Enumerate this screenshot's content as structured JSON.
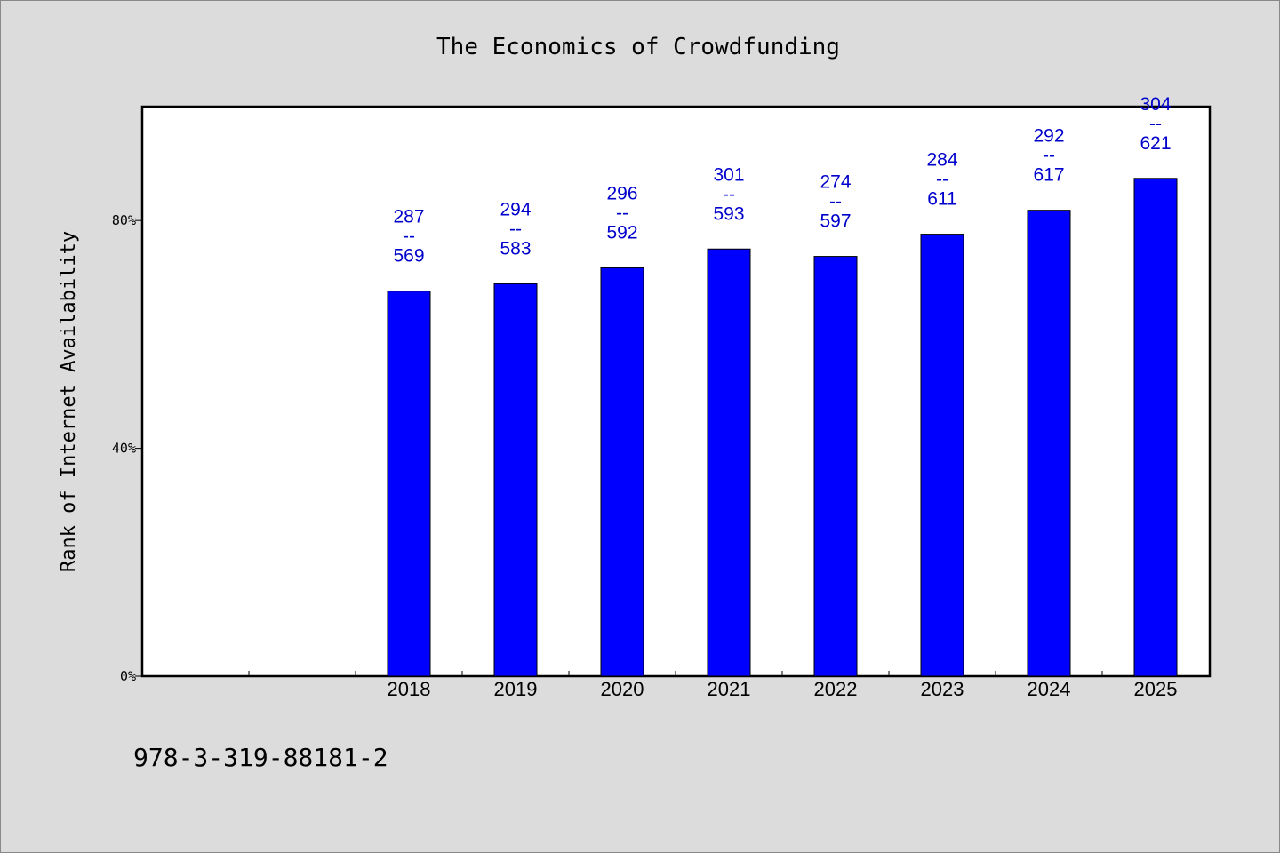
{
  "chart_data": {
    "type": "bar",
    "title": "The Economics of Crowdfunding",
    "ylabel": "Rank of Internet Availability",
    "xlabel": "",
    "categories": [
      "",
      "",
      "2018",
      "2019",
      "2020",
      "2021",
      "2022",
      "2023",
      "2024",
      "2025"
    ],
    "values": [
      null,
      null,
      67.6,
      68.9,
      71.7,
      75.0,
      73.7,
      77.6,
      81.8,
      87.4
    ],
    "data_labels": [
      null,
      null,
      [
        "287",
        "--",
        "569"
      ],
      [
        "294",
        "--",
        "583"
      ],
      [
        "296",
        "--",
        "592"
      ],
      [
        "301",
        "--",
        "593"
      ],
      [
        "274",
        "--",
        "597"
      ],
      [
        "284",
        "--",
        "611"
      ],
      [
        "292",
        "--",
        "617"
      ],
      [
        "304",
        "--",
        "621"
      ]
    ],
    "yticks": [
      0,
      40,
      80
    ],
    "ytick_labels": [
      "0%",
      "40%",
      "80%"
    ],
    "ylim": [
      0,
      100
    ],
    "grid": false,
    "bar_color": "#0000ff",
    "label_color": "#0000cc",
    "background": "#dcdcdc",
    "plot_background": "#ffffff"
  },
  "footer": {
    "isbn": "978-3-319-88181-2"
  }
}
